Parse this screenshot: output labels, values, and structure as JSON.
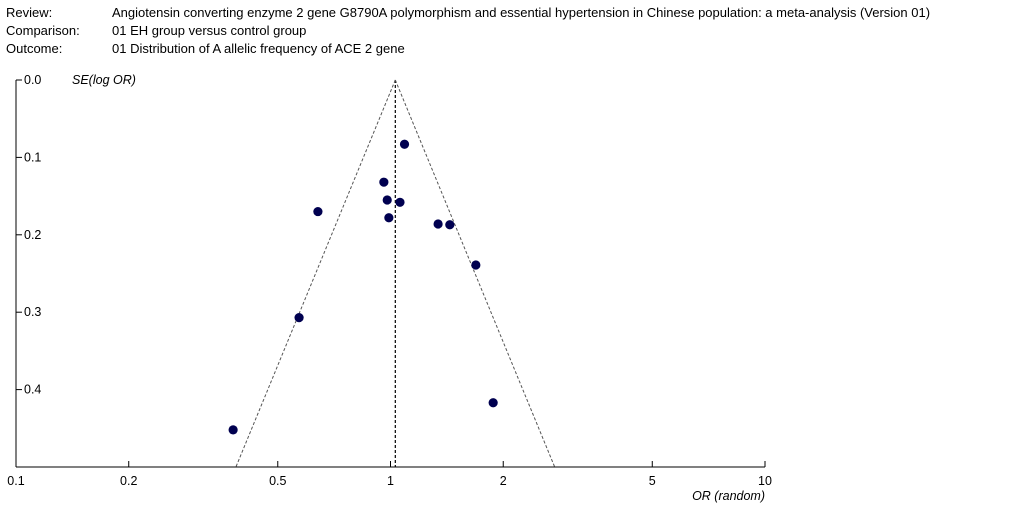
{
  "header": {
    "review_key": "Review:",
    "review_value": "Angiotensin converting enzyme 2 gene G8790A  polymorphism and essential hypertension in Chinese population: a meta-analysis (Version 01)",
    "comparison_key": "Comparison:",
    "comparison_value": "01 EH group versus control group",
    "outcome_key": "Outcome:",
    "outcome_value": "01 Distribution of  A allelic frequency of ACE 2 gene"
  },
  "chart_data": {
    "type": "scatter",
    "title": "",
    "xlabel": "OR (random)",
    "ylabel": "SE(log OR)",
    "x_scale": "log",
    "xlim": [
      0.1,
      10
    ],
    "ylim": [
      0,
      0.5
    ],
    "y_inverted": true,
    "x_ticks": [
      0.1,
      0.2,
      0.5,
      1,
      2,
      5,
      10
    ],
    "x_tick_labels": [
      "0.1",
      "0.2",
      "0.5",
      "1",
      "2",
      "5",
      "10"
    ],
    "y_ticks": [
      0,
      0.1,
      0.2,
      0.3,
      0.4
    ],
    "y_tick_labels": [
      "0.0",
      "0.1",
      "0.2",
      "0.3",
      "0.4"
    ],
    "pooled_or": 1.03,
    "funnel": "95% pseudo-confidence limits (dashed)",
    "points": [
      {
        "or": 1.09,
        "se": 0.083
      },
      {
        "or": 0.96,
        "se": 0.132
      },
      {
        "or": 0.98,
        "se": 0.155
      },
      {
        "or": 1.06,
        "se": 0.158
      },
      {
        "or": 0.64,
        "se": 0.17
      },
      {
        "or": 0.99,
        "se": 0.178
      },
      {
        "or": 1.34,
        "se": 0.186
      },
      {
        "or": 1.44,
        "se": 0.187
      },
      {
        "or": 1.69,
        "se": 0.239
      },
      {
        "or": 0.57,
        "se": 0.307
      },
      {
        "or": 1.88,
        "se": 0.417
      },
      {
        "or": 0.38,
        "se": 0.452
      }
    ],
    "marker_color": "#000050",
    "line_color": "#000000"
  }
}
